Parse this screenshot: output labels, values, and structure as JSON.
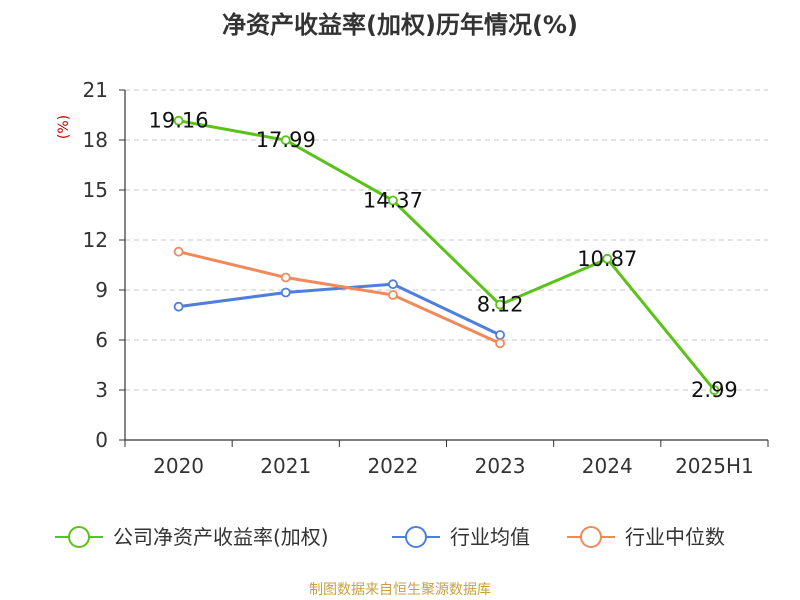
{
  "chart_data": {
    "type": "line",
    "title": "净资产收益率(加权)历年情况(%)",
    "ylabel": "(%)",
    "xlabel": "",
    "categories": [
      "2020",
      "2021",
      "2022",
      "2023",
      "2024",
      "2025H1"
    ],
    "ylim": [
      0,
      21
    ],
    "yticks": [
      0,
      3,
      6,
      9,
      12,
      15,
      18,
      21
    ],
    "grid": true,
    "legend_position": "bottom",
    "series": [
      {
        "name": "公司净资产收益率(加权)",
        "color": "#5bc21a",
        "values": [
          19.16,
          17.99,
          14.37,
          8.12,
          10.87,
          2.99
        ],
        "labels": [
          "19.16",
          "17.99",
          "14.37",
          "8.12",
          "10.87",
          "2.99"
        ]
      },
      {
        "name": "行业均值",
        "color": "#4e7fdc",
        "values": [
          8.0,
          8.85,
          9.35,
          6.3,
          null,
          null
        ]
      },
      {
        "name": "行业中位数",
        "color": "#f2895a",
        "values": [
          11.3,
          9.75,
          8.7,
          5.8,
          null,
          null
        ]
      }
    ]
  },
  "source": "制图数据来自恒生聚源数据库"
}
